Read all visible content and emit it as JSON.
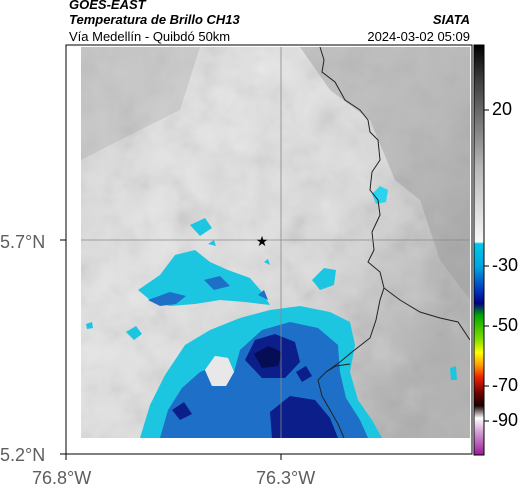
{
  "header": {
    "source": "GOES-EAST",
    "product": "Temperatura de Brillo CH13",
    "location": "Vía Medellín - Quibdó 50km",
    "organization": "SIATA",
    "timestamp": "2024-03-02 05:09"
  },
  "axes": {
    "lat_ticks": [
      "5.2°N",
      "5.7°N"
    ],
    "lon_ticks": [
      "76.8°W",
      "76.3°W"
    ]
  },
  "colorbar": {
    "labels": [
      "20",
      "-30",
      "-50",
      "-70",
      "-90"
    ]
  },
  "colors": {
    "cloud_cyan": "#1cc6e0",
    "cloud_blue": "#1e6fc8",
    "cloud_dark": "#0b1e8a",
    "border_line": "#222222"
  },
  "icons": {
    "site_marker": "star-icon"
  }
}
